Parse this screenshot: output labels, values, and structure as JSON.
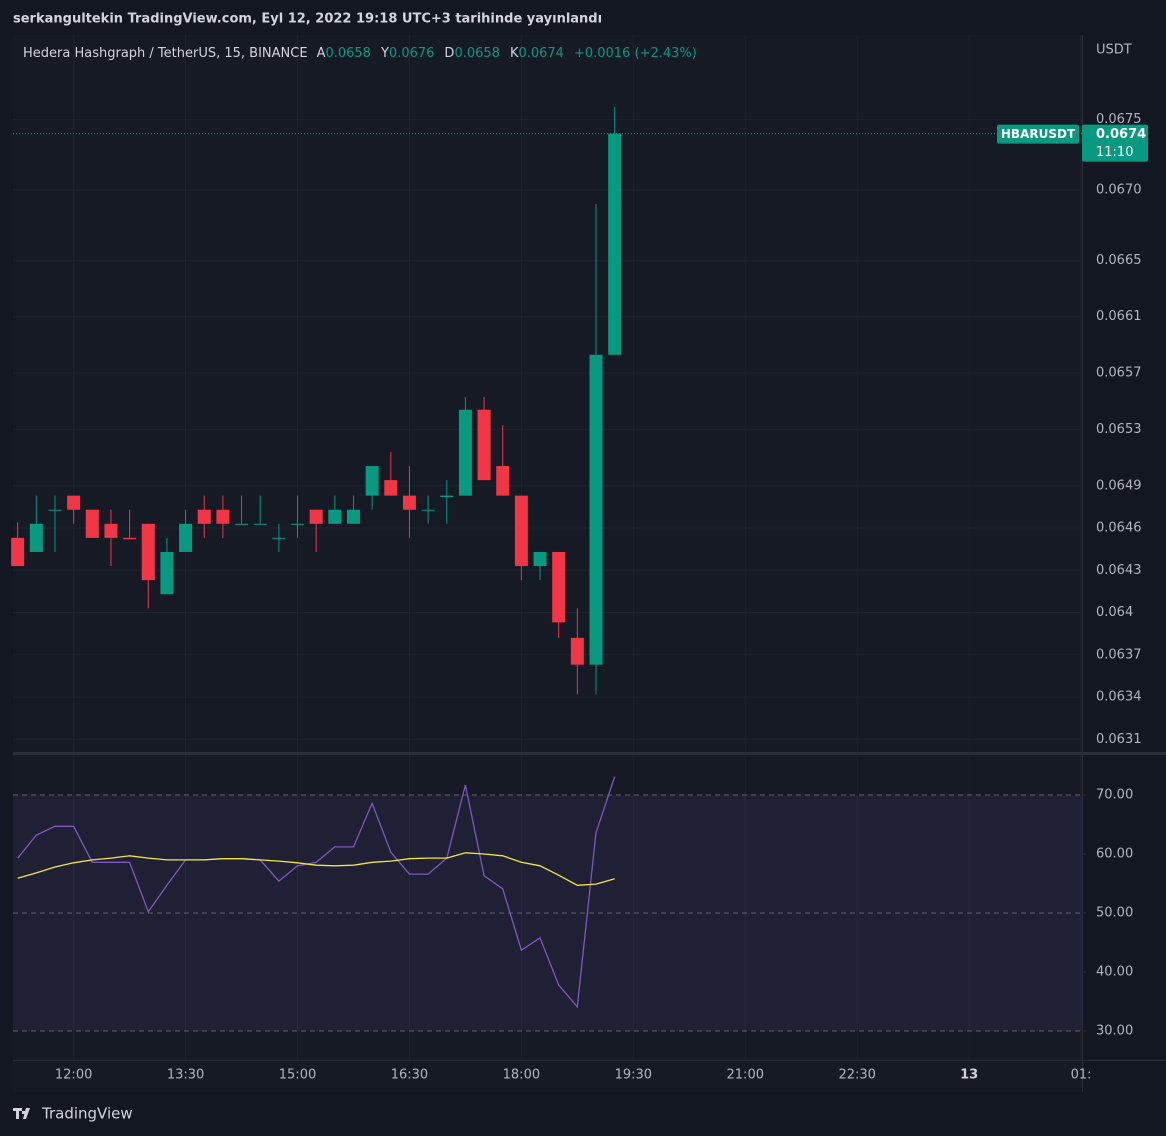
{
  "header": {
    "title": "serkangultekin TradingView.com, Eyl 12, 2022 19:18 UTC+3 tarihinde yayınlandı"
  },
  "chart_data": [
    {
      "type": "candlestick",
      "title": "Hedera Hashgraph / TetherUS, 15, BINANCE",
      "legend": [
        {
          "label": "A",
          "value": 0.0658
        },
        {
          "label": "Y",
          "value": 0.0676
        },
        {
          "label": "D",
          "value": 0.0658
        },
        {
          "label": "K",
          "value": 0.0674
        }
      ],
      "change": "+0.0016 (+2.43%)",
      "unit": "USDT",
      "symbol": "HBARUSDT",
      "last_price": 0.0674,
      "countdown": "11:10",
      "open": [
        0.06453,
        0.06443,
        0.06473,
        0.06483,
        0.06473,
        0.06463,
        0.06453,
        0.06463,
        0.06413,
        0.06443,
        0.06473,
        0.06473,
        0.06463,
        0.06463,
        0.06453,
        0.06463,
        0.06473,
        0.06463,
        0.06463,
        0.06483,
        0.06494,
        0.06483,
        0.06473,
        0.06482,
        0.06483,
        0.06544,
        0.06504,
        0.06483,
        0.06433,
        0.06443,
        0.06382,
        0.06363,
        0.06583
      ],
      "high": [
        0.06464,
        0.06483,
        0.06483,
        0.06483,
        0.06473,
        0.06473,
        0.06473,
        0.06463,
        0.06453,
        0.06473,
        0.06483,
        0.06483,
        0.06483,
        0.06483,
        0.06463,
        0.06483,
        0.06473,
        0.06483,
        0.06483,
        0.06504,
        0.06514,
        0.06504,
        0.06483,
        0.06494,
        0.06553,
        0.06553,
        0.06533,
        0.06483,
        0.06443,
        0.06443,
        0.06403,
        0.0669,
        0.06759
      ],
      "low": [
        0.06433,
        0.06443,
        0.06443,
        0.06463,
        0.06453,
        0.06433,
        0.06453,
        0.06403,
        0.06413,
        0.06443,
        0.06453,
        0.06453,
        0.06463,
        0.06463,
        0.06443,
        0.06453,
        0.06443,
        0.06463,
        0.06463,
        0.06473,
        0.06483,
        0.06453,
        0.06463,
        0.06463,
        0.06483,
        0.06494,
        0.06483,
        0.06423,
        0.06423,
        0.06382,
        0.06342,
        0.06342,
        0.06583
      ],
      "close": [
        0.06433,
        0.06463,
        0.06473,
        0.06473,
        0.06453,
        0.06453,
        0.06452,
        0.06423,
        0.06443,
        0.06463,
        0.06463,
        0.06463,
        0.06463,
        0.06463,
        0.06453,
        0.06463,
        0.06463,
        0.06473,
        0.06473,
        0.06504,
        0.06483,
        0.06473,
        0.06473,
        0.06483,
        0.06544,
        0.06494,
        0.06483,
        0.06433,
        0.06443,
        0.06393,
        0.06363,
        0.06583,
        0.0674
      ],
      "up_color": "#089981",
      "down_color": "#f23645",
      "ylim": [
        0.06301,
        0.0681
      ],
      "yticks": [
        0.0675,
        {
          "value": 0.067,
          "label": "0.0670"
        },
        0.0665,
        0.0661,
        0.0657,
        0.0653,
        0.0649,
        0.0646,
        0.0643,
        0.064,
        "0.0637",
        0.0634,
        0.0631
      ],
      "xlim": [
        -0.25,
        57.05
      ],
      "xticks": [
        {
          "value": 3,
          "label": "12:00"
        },
        {
          "value": 9,
          "label": "13:30"
        },
        {
          "value": 15,
          "label": "15:00"
        },
        {
          "value": 21,
          "label": "16:30"
        },
        {
          "value": 27,
          "label": "18:00"
        },
        {
          "value": 33,
          "label": "19:30"
        },
        {
          "value": 39,
          "label": "21:00"
        },
        {
          "value": 45,
          "label": "22:30"
        },
        {
          "value": 51,
          "label": "13"
        },
        {
          "value": 57,
          "label": "01:"
        }
      ],
      "grid": true
    },
    {
      "type": "line",
      "series": [
        {
          "color": "#7e57c2",
          "values": [
            59.3,
            63.2,
            64.7,
            64.7,
            58.6,
            58.6,
            58.6,
            50.2,
            54.7,
            59.0,
            59.0,
            59.2,
            59.2,
            59.0,
            55.4,
            58.0,
            58.6,
            61.2,
            61.2,
            68.6,
            60.3,
            56.6,
            56.6,
            59.3,
            71.7,
            56.3,
            54.1,
            43.7,
            45.8,
            37.8,
            34.1,
            63.6,
            73.1
          ]
        },
        {
          "color": "#f5e53b",
          "values": [
            55.9,
            56.8,
            57.8,
            58.5,
            59.0,
            59.3,
            59.7,
            59.3,
            59.0,
            59.0,
            59.0,
            59.2,
            59.2,
            59.0,
            58.8,
            58.5,
            58.1,
            58.0,
            58.1,
            58.6,
            58.8,
            59.2,
            59.3,
            59.3,
            60.2,
            60.0,
            59.7,
            58.6,
            58.0,
            56.4,
            54.7,
            54.9,
            55.8
          ]
        }
      ],
      "ylim": [
        25.08,
        76.78
      ],
      "yticks": [
        {
          "value": 70,
          "label": "70.00"
        },
        {
          "value": 60,
          "label": "60.00"
        },
        {
          "value": 50,
          "label": "50.00"
        },
        {
          "value": 40,
          "label": "40.00"
        },
        {
          "value": 30,
          "label": "30.00"
        }
      ],
      "levels": [
        70,
        50,
        30
      ],
      "band_color": "#7e57c2"
    }
  ],
  "footer": {
    "brand": "TradingView"
  }
}
